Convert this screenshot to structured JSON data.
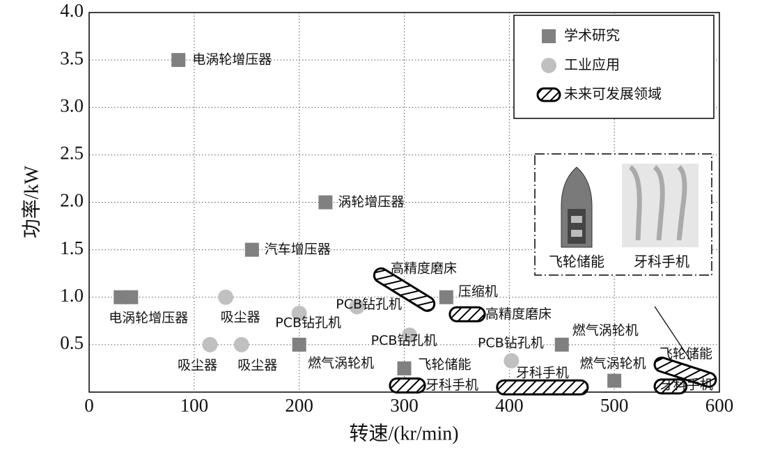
{
  "chart_data": {
    "type": "scatter",
    "xlabel": "转速/(kr/min)",
    "ylabel": "功率/kW",
    "xlim": [
      0,
      600
    ],
    "ylim": [
      0,
      4
    ],
    "xticks": [
      0,
      100,
      200,
      300,
      400,
      500,
      600
    ],
    "yticks": [
      0.5,
      {
        "value": 1,
        "label": "1.0"
      },
      1.5,
      {
        "value": 2,
        "label": "2.0"
      },
      2.5,
      {
        "value": 3,
        "label": "3.0"
      },
      3.5,
      {
        "value": 4,
        "label": "4.0"
      }
    ],
    "grid": true,
    "legend": "upper right",
    "series": [
      {
        "name": "学术研究",
        "color": "#808080",
        "marker": "square",
        "x": [
          85,
          30,
          40,
          155,
          225,
          340,
          200,
          300,
          450,
          500
        ],
        "values": [
          3.5,
          1,
          1,
          1.5,
          2,
          1,
          0.5,
          0.25,
          0.5,
          0.12
        ],
        "labels": [
          "电涡轮增压器",
          "电涡轮增压器",
          null,
          "汽车增压器",
          "涡轮增压器",
          "压缩机",
          "燃气涡轮机",
          "飞轮储能",
          "燃气涡轮机",
          "燃气涡轮机"
        ]
      },
      {
        "name": "工业应用",
        "color": "#c0c0c0",
        "marker": "circle",
        "x": [
          130,
          115,
          145,
          200,
          255,
          305,
          402
        ],
        "values": [
          1,
          0.5,
          0.5,
          0.83,
          0.9,
          0.6,
          0.33
        ],
        "labels": [
          "吸尘器",
          "吸尘器",
          "吸尘器",
          "PCB钻孔机",
          "PCB钻孔机",
          "PCB钻孔机",
          "PCB钻孔机"
        ]
      },
      {
        "name": "未来可发展领域",
        "color": "#000000",
        "marker": "hatched-ellipse",
        "x": [
          [
            278,
            322
          ],
          [
            350,
            370
          ],
          [
            293,
            313
          ],
          [
            395,
            468
          ],
          [
            545,
            590
          ],
          [
            545,
            562
          ]
        ],
        "values": [
          [
            1.23,
            0.93
          ],
          [
            0.82,
            0.82
          ],
          [
            0.07,
            0.07
          ],
          [
            0.05,
            0.05
          ],
          [
            0.29,
            0.13
          ],
          [
            0.06,
            0.06
          ]
        ],
        "labels": [
          "高精度磨床",
          "高精度磨床",
          "牙科手机",
          "牙科手机",
          "飞轮储能",
          "牙科手机"
        ]
      }
    ],
    "inset": {
      "labels": [
        "飞轮储能",
        "牙科手机"
      ]
    }
  }
}
